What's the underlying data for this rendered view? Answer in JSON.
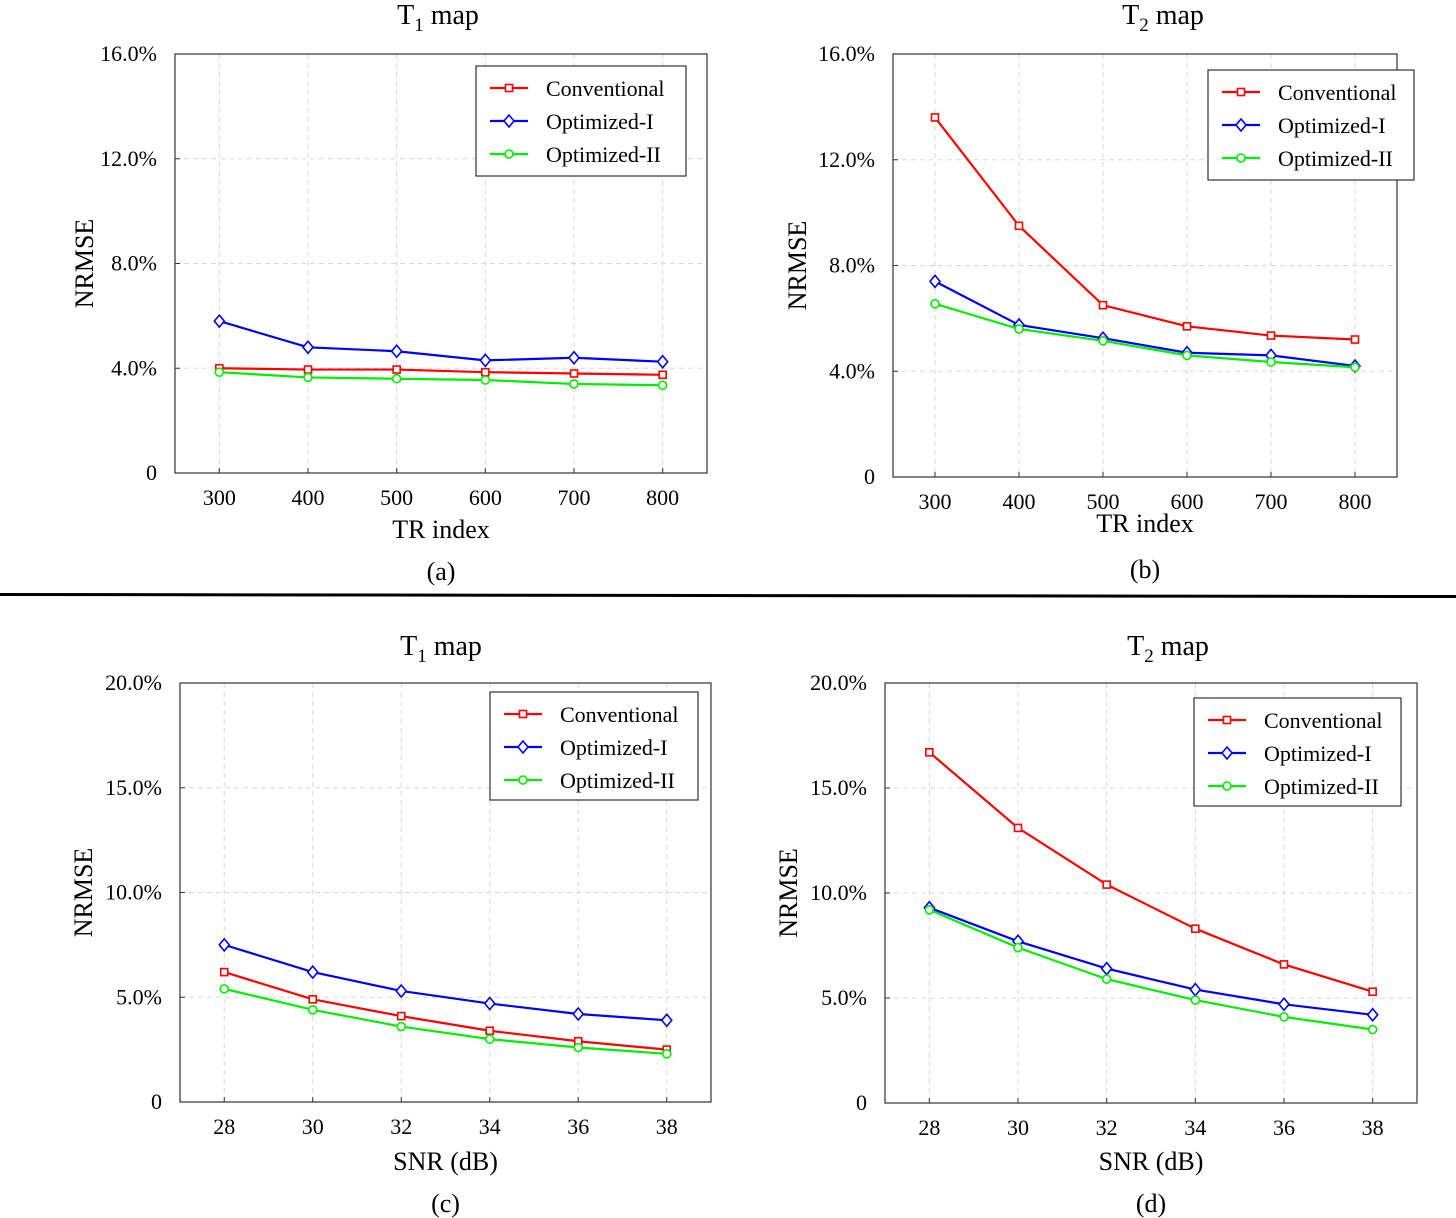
{
  "colors": {
    "conventional": "#ff0000",
    "optimized_i": "#0000ff",
    "optimized_ii": "#00ee00",
    "grid": "#d8d8d8"
  },
  "chart_data": [
    {
      "type": "line",
      "panel": "(a)",
      "title_main": "T",
      "title_sub": "1",
      "title_rest": "map",
      "xlabel": "TR index",
      "ylabel": "NRMSE",
      "x": [
        300,
        400,
        500,
        600,
        700,
        800
      ],
      "xlim": [
        250,
        850
      ],
      "ylim": [
        0,
        16
      ],
      "yticks": [
        0,
        4,
        8,
        12,
        16
      ],
      "ytick_labels": [
        "0",
        "4.0%",
        "8.0%",
        "12.0%",
        "16.0%"
      ],
      "legend_position": "top-right",
      "series": [
        {
          "name": "Conventional",
          "marker": "square",
          "color_key": "conventional",
          "values": [
            4.0,
            3.95,
            3.95,
            3.85,
            3.8,
            3.75
          ]
        },
        {
          "name": "Optimized-I",
          "marker": "diamond",
          "color_key": "optimized_i",
          "values": [
            5.8,
            4.8,
            4.65,
            4.3,
            4.4,
            4.25
          ]
        },
        {
          "name": "Optimized-II",
          "marker": "circle",
          "color_key": "optimized_ii",
          "values": [
            3.85,
            3.65,
            3.6,
            3.55,
            3.4,
            3.35
          ]
        }
      ]
    },
    {
      "type": "line",
      "panel": "(b)",
      "title_main": "T",
      "title_sub": "2",
      "title_rest": "map",
      "xlabel": "TR index",
      "ylabel": "NRMSE",
      "x": [
        300,
        400,
        500,
        600,
        700,
        800
      ],
      "xlim": [
        250,
        850
      ],
      "ylim": [
        0,
        16
      ],
      "yticks": [
        0,
        4,
        8,
        12,
        16
      ],
      "ytick_labels": [
        "0",
        "4.0%",
        "8.0%",
        "12.0%",
        "16.0%"
      ],
      "legend_position": "top-right",
      "series": [
        {
          "name": "Conventional",
          "marker": "square",
          "color_key": "conventional",
          "values": [
            13.6,
            9.5,
            6.5,
            5.7,
            5.35,
            5.2
          ]
        },
        {
          "name": "Optimized-I",
          "marker": "diamond",
          "color_key": "optimized_i",
          "values": [
            7.4,
            5.75,
            5.25,
            4.7,
            4.6,
            4.2
          ]
        },
        {
          "name": "Optimized-II",
          "marker": "circle",
          "color_key": "optimized_ii",
          "values": [
            6.55,
            5.6,
            5.15,
            4.6,
            4.35,
            4.15
          ]
        }
      ]
    },
    {
      "type": "line",
      "panel": "(c)",
      "title_main": "T",
      "title_sub": "1",
      "title_rest": "map",
      "xlabel": "SNR (dB)",
      "ylabel": "NRMSE",
      "x": [
        28,
        30,
        32,
        34,
        36,
        38
      ],
      "xlim": [
        27,
        39
      ],
      "ylim": [
        0,
        20
      ],
      "yticks": [
        0,
        5,
        10,
        15,
        20
      ],
      "ytick_labels": [
        "0",
        "5.0%",
        "10.0%",
        "15.0%",
        "20.0%"
      ],
      "legend_position": "top-right",
      "series": [
        {
          "name": "Conventional",
          "marker": "square",
          "color_key": "conventional",
          "values": [
            6.2,
            4.9,
            4.1,
            3.4,
            2.9,
            2.5
          ]
        },
        {
          "name": "Optimized-I",
          "marker": "diamond",
          "color_key": "optimized_i",
          "values": [
            7.5,
            6.2,
            5.3,
            4.7,
            4.2,
            3.9
          ]
        },
        {
          "name": "Optimized-II",
          "marker": "circle",
          "color_key": "optimized_ii",
          "values": [
            5.4,
            4.4,
            3.6,
            3.0,
            2.6,
            2.3
          ]
        }
      ]
    },
    {
      "type": "line",
      "panel": "(d)",
      "title_main": "T",
      "title_sub": "2",
      "title_rest": "map",
      "xlabel": "SNR (dB)",
      "ylabel": "NRMSE",
      "x": [
        28,
        30,
        32,
        34,
        36,
        38
      ],
      "xlim": [
        27,
        39
      ],
      "ylim": [
        0,
        20
      ],
      "yticks": [
        0,
        5,
        10,
        15,
        20
      ],
      "ytick_labels": [
        "0",
        "5.0%",
        "10.0%",
        "15.0%",
        "20.0%"
      ],
      "legend_position": "top-right",
      "series": [
        {
          "name": "Conventional",
          "marker": "square",
          "color_key": "conventional",
          "values": [
            16.7,
            13.1,
            10.4,
            8.3,
            6.6,
            5.3
          ]
        },
        {
          "name": "Optimized-I",
          "marker": "diamond",
          "color_key": "optimized_i",
          "values": [
            9.3,
            7.7,
            6.4,
            5.4,
            4.7,
            4.2
          ]
        },
        {
          "name": "Optimized-II",
          "marker": "circle",
          "color_key": "optimized_ii",
          "values": [
            9.2,
            7.4,
            5.9,
            4.9,
            4.1,
            3.5
          ]
        }
      ]
    }
  ]
}
